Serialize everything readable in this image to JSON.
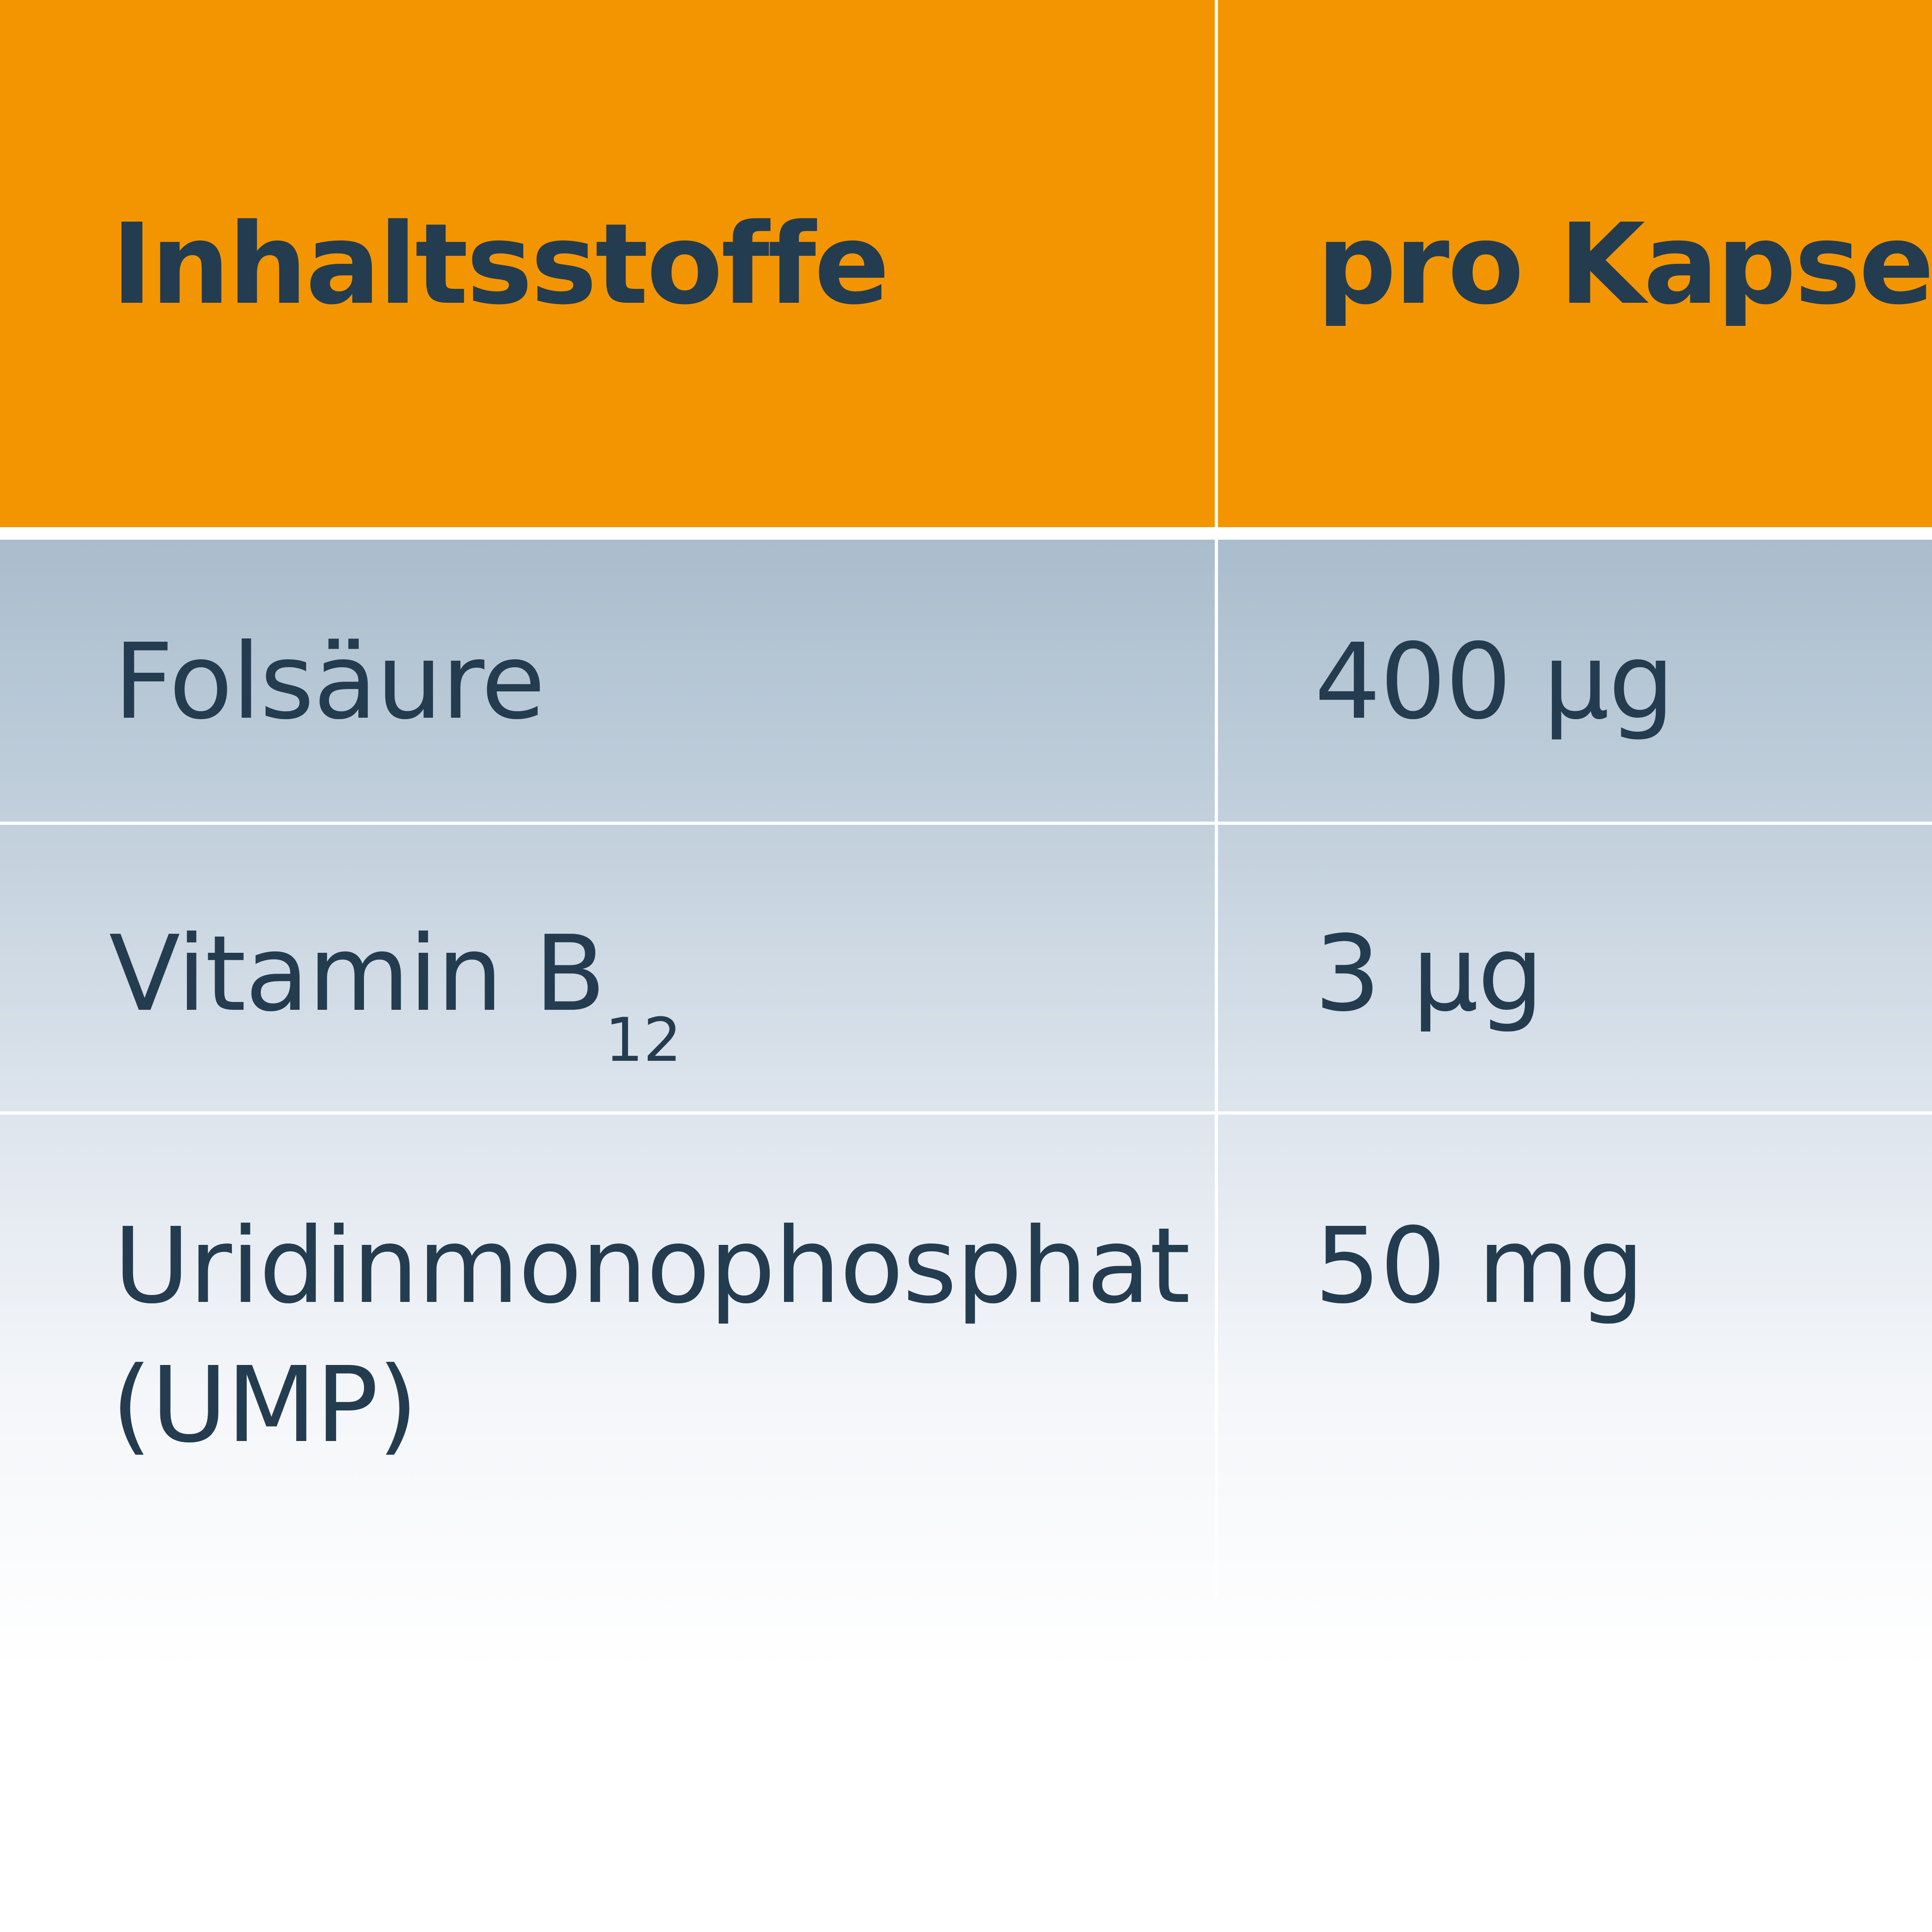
{
  "colors": {
    "header": "#f39500",
    "text": "#243c4f",
    "row_top": "#aabdcd"
  },
  "table": {
    "headers": [
      "Inhaltsstoffe",
      "pro Kapsel"
    ],
    "rows": [
      {
        "name": "Folsäure",
        "amount": "400 µg"
      },
      {
        "name": "Vitamin B",
        "name_sub": "12",
        "amount": "3 µg"
      },
      {
        "name": "Uridinmonophosphat",
        "name_line2": "(UMP)",
        "amount": "50 mg"
      }
    ]
  }
}
